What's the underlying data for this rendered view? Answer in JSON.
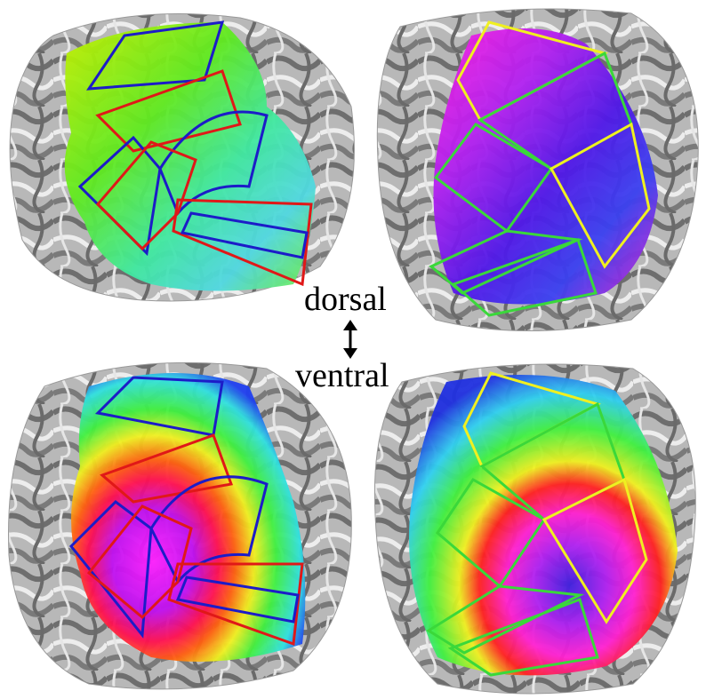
{
  "labels": {
    "dorsal": "dorsal",
    "ventral": "ventral"
  },
  "panels": [
    {
      "name": "top-left-map",
      "colormap": "polar-angle",
      "roi_colors": [
        "#1c1cc8",
        "#e01818"
      ]
    },
    {
      "name": "top-right-map",
      "colormap": "polar-angle",
      "roi_colors": [
        "#f0f020",
        "#3ad83a"
      ]
    },
    {
      "name": "bottom-left-map",
      "colormap": "eccentricity",
      "roi_colors": [
        "#1c1cc8",
        "#e01818"
      ]
    },
    {
      "name": "bottom-right-map",
      "colormap": "eccentricity",
      "roi_colors": [
        "#f0f020",
        "#3ad83a"
      ]
    }
  ],
  "colors": {
    "background": "#ffffff",
    "cortex_dark": "#8a8a8a",
    "cortex_light": "#d4d4d4",
    "sulcus_white": "#ffffff"
  }
}
